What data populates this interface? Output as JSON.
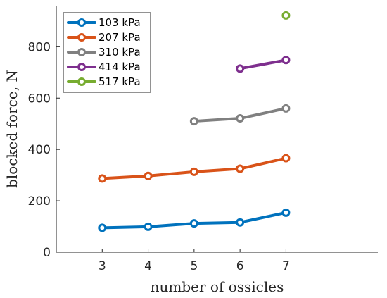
{
  "chart_data": {
    "type": "line",
    "xlabel": "number of ossicles",
    "ylabel": "blocked force, N",
    "xlim": [
      2,
      9
    ],
    "ylim": [
      0,
      960
    ],
    "x_ticks": [
      3,
      4,
      5,
      6,
      7
    ],
    "y_ticks": [
      0,
      200,
      400,
      600,
      800
    ],
    "grid": false,
    "legend_position": "top-left",
    "series": [
      {
        "name": "103 kPa",
        "color": "#0072BD",
        "x": [
          3,
          4,
          5,
          6,
          7
        ],
        "y": [
          95,
          99,
          112,
          116,
          154
        ]
      },
      {
        "name": "207 kPa",
        "color": "#D95319",
        "x": [
          3,
          4,
          5,
          6,
          7
        ],
        "y": [
          287,
          297,
          313,
          325,
          366
        ]
      },
      {
        "name": "310 kPa",
        "color": "#808080",
        "x": [
          5,
          6,
          7
        ],
        "y": [
          510,
          521,
          560
        ]
      },
      {
        "name": "414 kPa",
        "color": "#7E2F8E",
        "x": [
          6,
          7
        ],
        "y": [
          715,
          748
        ]
      },
      {
        "name": "517 kPa",
        "color": "#77AC30",
        "x": [
          7
        ],
        "y": [
          922
        ]
      }
    ]
  }
}
